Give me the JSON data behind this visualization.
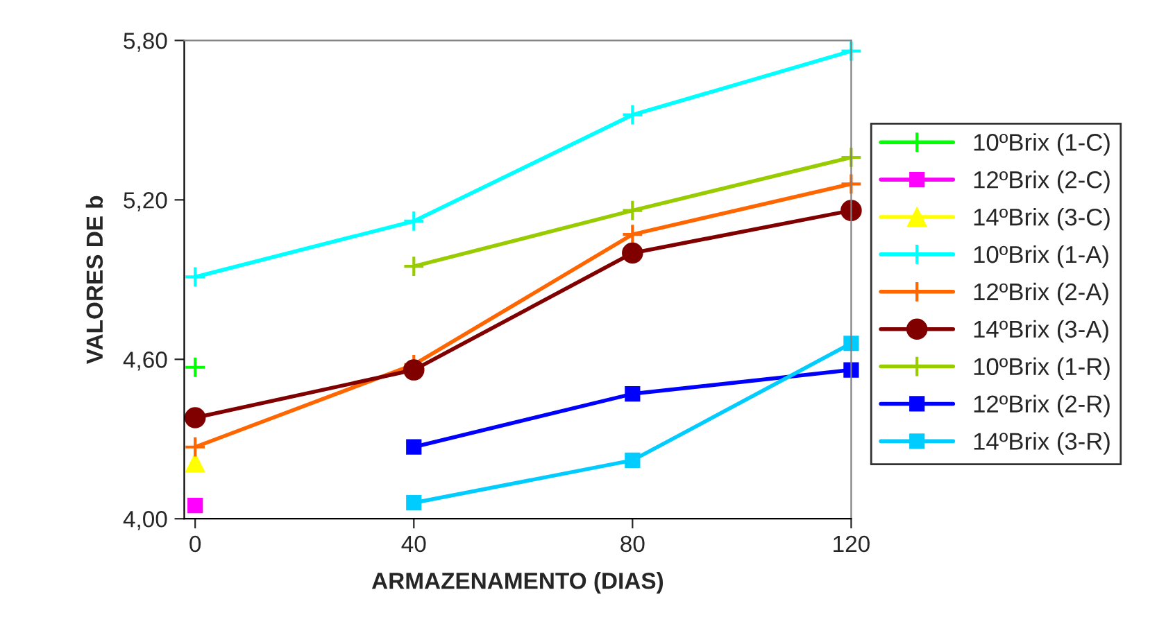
{
  "chart_data": {
    "type": "line",
    "xlabel": "ARMAZENAMENTO (DIAS)",
    "ylabel": "VALORES DE b",
    "x": [
      0,
      40,
      80,
      120
    ],
    "series": [
      {
        "name": "10ºBrix (1-C)",
        "color": "#00ff00",
        "marker": "cross",
        "values": [
          4.57,
          null,
          null,
          null
        ]
      },
      {
        "name": "12ºBrix (2-C)",
        "color": "#ff00ff",
        "marker": "square",
        "values": [
          4.05,
          null,
          null,
          null
        ]
      },
      {
        "name": "14ºBrix (3-C)",
        "color": "#ffff00",
        "marker": "triangle",
        "values": [
          4.21,
          null,
          null,
          null
        ]
      },
      {
        "name": "10ºBrix (1-A)",
        "color": "#00ffff",
        "marker": "cross",
        "values": [
          4.91,
          5.12,
          5.52,
          5.76
        ]
      },
      {
        "name": "12ºBrix (2-A)",
        "color": "#ff6600",
        "marker": "cross",
        "values": [
          4.27,
          4.58,
          5.07,
          5.26
        ]
      },
      {
        "name": "14ºBrix (3-A)",
        "color": "#800000",
        "marker": "circle",
        "values": [
          4.38,
          4.56,
          5.0,
          5.16
        ]
      },
      {
        "name": "10ºBrix (1-R)",
        "color": "#99cc00",
        "marker": "cross",
        "values": [
          null,
          4.95,
          5.16,
          5.36
        ]
      },
      {
        "name": "12ºBrix (2-R)",
        "color": "#0000ff",
        "marker": "square",
        "values": [
          null,
          4.27,
          4.47,
          4.56
        ]
      },
      {
        "name": "14ºBrix (3-R)",
        "color": "#00ccff",
        "marker": "square",
        "values": [
          null,
          4.06,
          4.22,
          4.66
        ]
      }
    ],
    "xlim": [
      -2,
      120
    ],
    "xticks": [
      0,
      40,
      80,
      120
    ],
    "ylim": [
      4.0,
      5.8
    ],
    "yticks": [
      {
        "value": 4.0,
        "label": "4,00"
      },
      {
        "value": 4.6,
        "label": "4,60"
      },
      {
        "value": 5.2,
        "label": "5,20"
      },
      {
        "value": 5.8,
        "label": "5,80"
      }
    ],
    "grid": false,
    "legend": "right",
    "line_style": "solid"
  }
}
